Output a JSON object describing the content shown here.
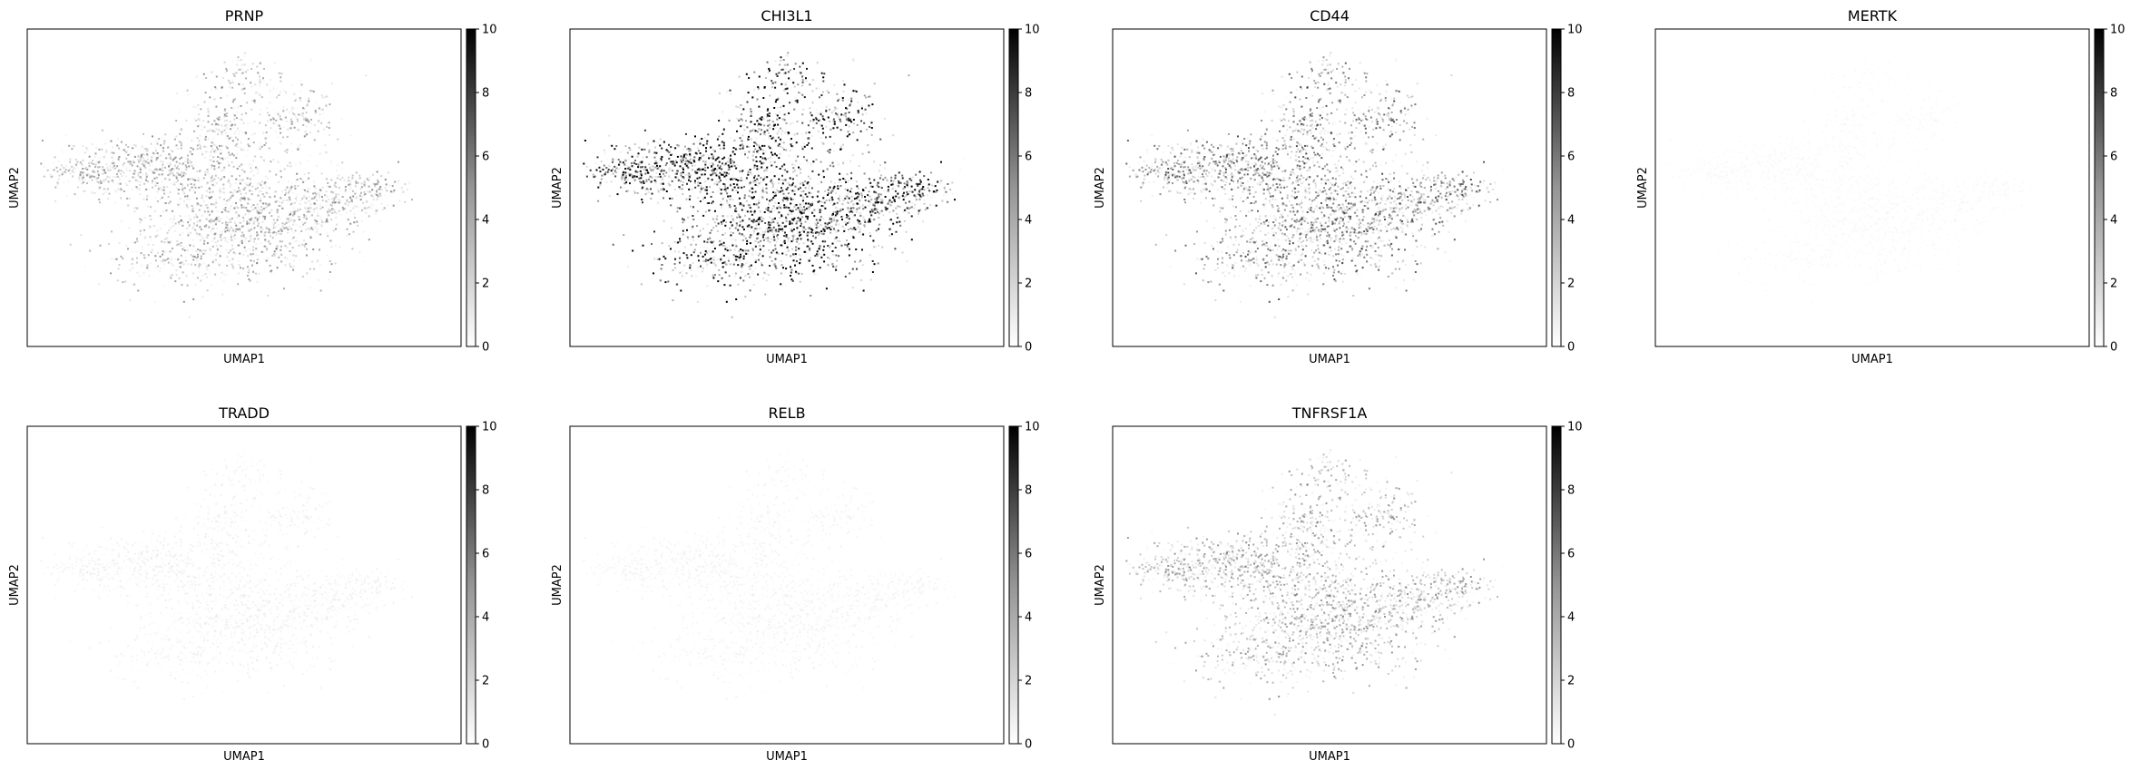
{
  "figure": {
    "colorbar": {
      "min": 0,
      "max": 10,
      "ticks": [
        "0",
        "2",
        "4",
        "6",
        "8",
        "10"
      ],
      "colormap": "greys"
    }
  },
  "chart_data": [
    {
      "type": "scatter",
      "title": "PRNP",
      "xlabel": "UMAP1",
      "ylabel": "UMAP2",
      "intensity": 0.45,
      "grid": false,
      "legend": "colorbar-right",
      "clim": [
        0,
        10
      ]
    },
    {
      "type": "scatter",
      "title": "CHI3L1",
      "xlabel": "UMAP1",
      "ylabel": "UMAP2",
      "intensity": 0.95,
      "grid": false,
      "legend": "colorbar-right",
      "clim": [
        0,
        10
      ]
    },
    {
      "type": "scatter",
      "title": "CD44",
      "xlabel": "UMAP1",
      "ylabel": "UMAP2",
      "intensity": 0.6,
      "grid": false,
      "legend": "colorbar-right",
      "clim": [
        0,
        10
      ]
    },
    {
      "type": "scatter",
      "title": "MERTK",
      "xlabel": "UMAP1",
      "ylabel": "UMAP2",
      "intensity": 0.06,
      "grid": false,
      "legend": "colorbar-right",
      "clim": [
        0,
        10
      ]
    },
    {
      "type": "scatter",
      "title": "TRADD",
      "xlabel": "UMAP1",
      "ylabel": "UMAP2",
      "intensity": 0.12,
      "grid": false,
      "legend": "colorbar-right",
      "clim": [
        0,
        10
      ]
    },
    {
      "type": "scatter",
      "title": "RELB",
      "xlabel": "UMAP1",
      "ylabel": "UMAP2",
      "intensity": 0.1,
      "grid": false,
      "legend": "colorbar-right",
      "clim": [
        0,
        10
      ]
    },
    {
      "type": "scatter",
      "title": "TNFRSF1A",
      "xlabel": "UMAP1",
      "ylabel": "UMAP2",
      "intensity": 0.45,
      "grid": false,
      "legend": "colorbar-right",
      "clim": [
        0,
        10
      ]
    }
  ]
}
